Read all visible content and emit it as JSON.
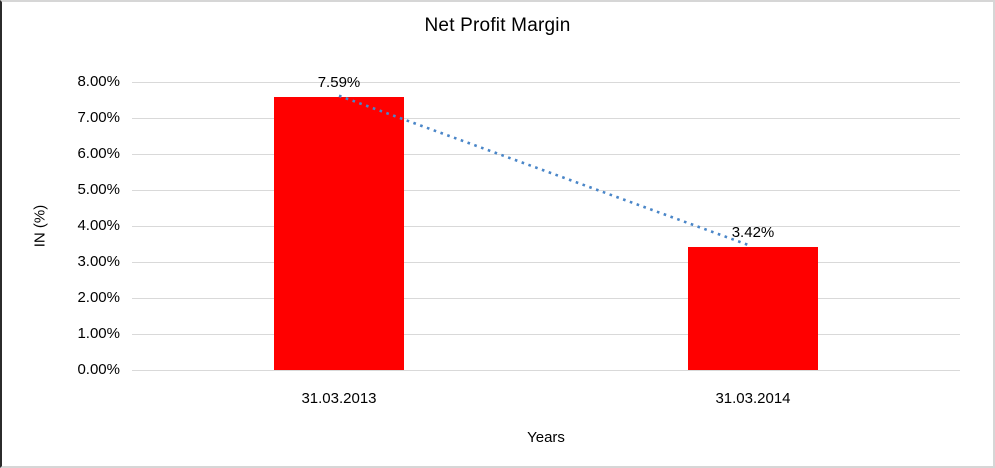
{
  "chart_data": {
    "type": "bar",
    "title": "Net Profit Margin",
    "categories": [
      "31.03.2013",
      "31.03.2014"
    ],
    "values": [
      7.59,
      3.42
    ],
    "data_labels": [
      "7.59%",
      "3.42%"
    ],
    "xlabel": "Years",
    "ylabel": "IN (%)",
    "ylim": [
      0,
      8
    ],
    "ytick_step": 1,
    "ytick_labels": [
      "0.00%",
      "1.00%",
      "2.00%",
      "3.00%",
      "4.00%",
      "5.00%",
      "6.00%",
      "7.00%",
      "8.00%"
    ],
    "grid": true,
    "legend": "none",
    "bar_color": "#ff0000",
    "gridline_color": "#d9d9d9",
    "trendline": {
      "style": "dotted",
      "color": "#4a86c8",
      "from_value": 7.59,
      "to_value": 3.42
    }
  }
}
